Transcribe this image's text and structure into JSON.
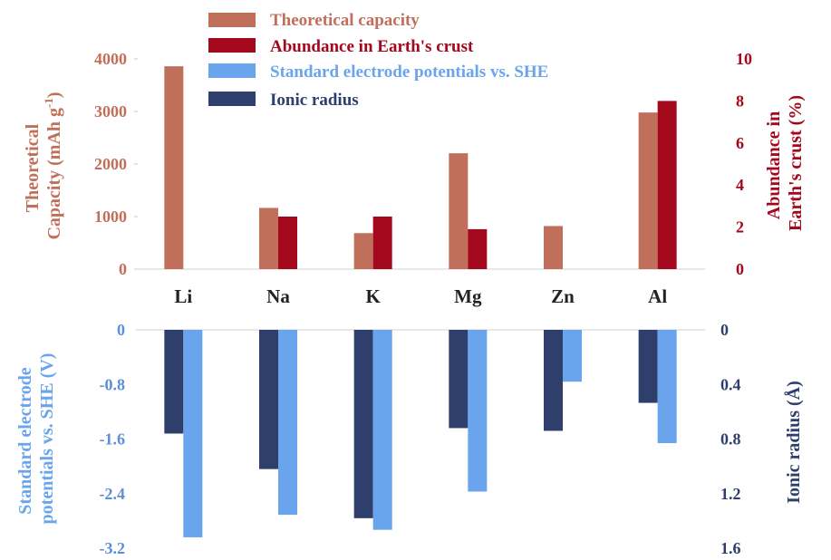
{
  "colors": {
    "theoretical_capacity": "#c0705a",
    "abundance": "#a3081c",
    "electrode_potential": "#6aa4ec",
    "ionic_radius": "#2e3f6c",
    "left_axis_top": "#c0705a",
    "right_axis_top": "#a3081c",
    "left_axis_bottom": "#6aa4ec",
    "right_axis_bottom": "#2e3f6c",
    "tick_top": "#c0705a",
    "tick_bottom": "#5b8fd6",
    "tick_right_top": "#a3081c",
    "tick_right_bottom": "#2e3f6c",
    "category_label": "#222222"
  },
  "legend": {
    "items": [
      {
        "label": "Theoretical capacity",
        "color": "#c0705a"
      },
      {
        "label": "Abundance in Earth's crust",
        "color": "#a3081c"
      },
      {
        "label": "Standard electrode potentials vs. SHE",
        "color": "#6aa4ec"
      },
      {
        "label": "Ionic radius",
        "color": "#2e3f6c"
      }
    ]
  },
  "chart_data": [
    {
      "type": "bar",
      "categories": [
        "Li",
        "Na",
        "K",
        "Mg",
        "Zn",
        "Al"
      ],
      "series": [
        {
          "name": "Theoretical capacity",
          "axis": "left",
          "values": [
            3860,
            1165,
            685,
            2205,
            820,
            2980
          ]
        },
        {
          "name": "Abundance in Earth's crust",
          "axis": "right",
          "values": [
            0.0,
            2.5,
            2.5,
            1.9,
            0.0,
            8.0
          ]
        }
      ],
      "ylabel_left": [
        "Theoretical",
        "Capacity (mAh g",
        "-1",
        ")"
      ],
      "ylabel_right": [
        "Abundance in",
        "Earth's crust (%)"
      ],
      "ylim_left": [
        0,
        4000
      ],
      "ylim_right": [
        0,
        10
      ],
      "yticks_left": [
        "0",
        "1000",
        "2000",
        "3000",
        "4000"
      ],
      "yticks_right": [
        "0",
        "2",
        "4",
        "6",
        "8",
        "10"
      ]
    },
    {
      "type": "bar",
      "categories": [
        "Li",
        "Na",
        "K",
        "Mg",
        "Zn",
        "Al"
      ],
      "series": [
        {
          "name": "Ionic radius",
          "axis": "right",
          "values": [
            0.76,
            1.02,
            1.38,
            0.72,
            0.74,
            0.535
          ]
        },
        {
          "name": "Standard electrode potentials vs. SHE",
          "axis": "left",
          "values": [
            -3.04,
            -2.71,
            -2.93,
            -2.37,
            -0.76,
            -1.66
          ]
        }
      ],
      "ylabel_left": [
        "Standard electrode",
        "potentials vs. SHE (V)"
      ],
      "ylabel_right": [
        "Ionic radius (Å)"
      ],
      "ylim_left": [
        0,
        -3.2
      ],
      "ylim_right": [
        0,
        1.6
      ],
      "yticks_left": [
        "0",
        "-0.8",
        "-1.6",
        "-2.4",
        "-3.2"
      ],
      "yticks_right": [
        "0",
        "0.4",
        "0.8",
        "1.2",
        "1.6"
      ]
    }
  ]
}
